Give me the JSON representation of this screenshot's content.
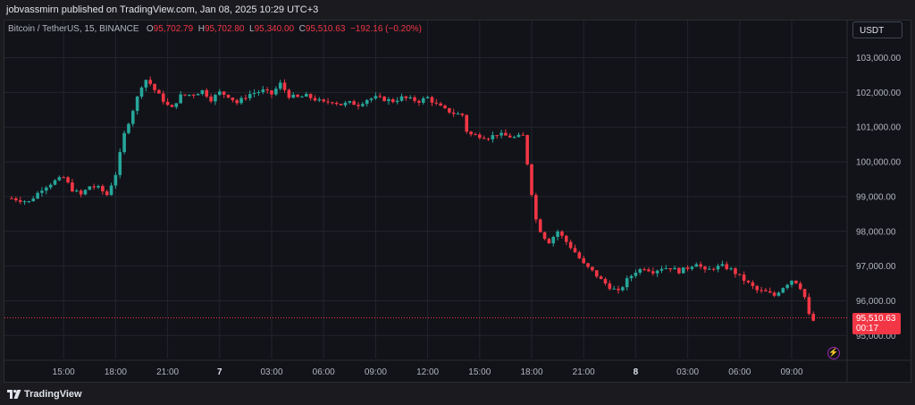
{
  "publisher": "jobvassmirn published on TradingView.com, Jan 08, 2025 10:29 UTC+3",
  "legend": {
    "symbol": "Bitcoin / TetherUS, 15, BINANCE",
    "o_label": "O",
    "o_value": "95,702.79",
    "h_label": "H",
    "h_value": "95,702.80",
    "l_label": "L",
    "l_value": "95,340.00",
    "c_label": "C",
    "c_value": "95,510.63",
    "change": "−192.16 (−0.20%)"
  },
  "currency_button": "USDT",
  "price_tag": {
    "price": "95,510.63",
    "countdown": "00:17"
  },
  "footer": {
    "brand": "TradingView",
    "logo_icon": "tradingview-logo-icon"
  },
  "bolt_icon": "lightning-icon",
  "colors": {
    "up": "#26a69a",
    "down": "#f23645",
    "grid": "#22252d",
    "text": "#b2b5be"
  },
  "chart_data": {
    "type": "candlestick",
    "ylim": [
      94700,
      103400
    ],
    "y_ticks": [
      {
        "value": 95000,
        "label": "95,000.00"
      },
      {
        "value": 96000,
        "label": "96,000.00"
      },
      {
        "value": 97000,
        "label": "97,000.00"
      },
      {
        "value": 98000,
        "label": "98,000.00"
      },
      {
        "value": 99000,
        "label": "99,000.00"
      },
      {
        "value": 100000,
        "label": "100,000.00"
      },
      {
        "value": 101000,
        "label": "101,000.00"
      },
      {
        "value": 102000,
        "label": "102,000.00"
      },
      {
        "value": 103000,
        "label": "103,000.00"
      }
    ],
    "x_start": "Jan 06 12:00",
    "x_end": "Jan 08 10:30",
    "x_ticks": [
      {
        "t": 3,
        "label": "15:00",
        "bold": false
      },
      {
        "t": 6,
        "label": "18:00",
        "bold": false
      },
      {
        "t": 9,
        "label": "21:00",
        "bold": false
      },
      {
        "t": 12,
        "label": "7",
        "bold": true
      },
      {
        "t": 15,
        "label": "03:00",
        "bold": false
      },
      {
        "t": 18,
        "label": "06:00",
        "bold": false
      },
      {
        "t": 21,
        "label": "09:00",
        "bold": false
      },
      {
        "t": 24,
        "label": "12:00",
        "bold": false
      },
      {
        "t": 27,
        "label": "15:00",
        "bold": false
      },
      {
        "t": 30,
        "label": "18:00",
        "bold": false
      },
      {
        "t": 33,
        "label": "21:00",
        "bold": false
      },
      {
        "t": 36,
        "label": "8",
        "bold": true
      },
      {
        "t": 39,
        "label": "03:00",
        "bold": false
      },
      {
        "t": 42,
        "label": "06:00",
        "bold": false
      },
      {
        "t": 45,
        "label": "09:00",
        "bold": false
      }
    ],
    "last_price": 95510.63,
    "close_path": [
      [
        0,
        98950
      ],
      [
        1.0,
        98850
      ],
      [
        1.8,
        99250
      ],
      [
        2.5,
        99450
      ],
      [
        3.0,
        99550
      ],
      [
        3.5,
        99200
      ],
      [
        4.0,
        99050
      ],
      [
        4.5,
        99300
      ],
      [
        5.0,
        99250
      ],
      [
        5.5,
        99050
      ],
      [
        6.0,
        99650
      ],
      [
        6.5,
        100800
      ],
      [
        7.0,
        101500
      ],
      [
        7.5,
        102200
      ],
      [
        7.8,
        102400
      ],
      [
        8.2,
        102100
      ],
      [
        8.7,
        101800
      ],
      [
        9.2,
        101500
      ],
      [
        9.7,
        101900
      ],
      [
        10.5,
        101950
      ],
      [
        11.0,
        102050
      ],
      [
        11.5,
        101800
      ],
      [
        12.0,
        102000
      ],
      [
        12.5,
        101900
      ],
      [
        13.0,
        101700
      ],
      [
        13.7,
        101950
      ],
      [
        14.5,
        102050
      ],
      [
        15.0,
        101950
      ],
      [
        15.5,
        102250
      ],
      [
        16.0,
        101900
      ],
      [
        16.5,
        101850
      ],
      [
        17.0,
        101900
      ],
      [
        17.5,
        101800
      ],
      [
        18.0,
        101700
      ],
      [
        18.5,
        101750
      ],
      [
        19.0,
        101650
      ],
      [
        19.5,
        101700
      ],
      [
        20.0,
        101650
      ],
      [
        20.5,
        101800
      ],
      [
        21.0,
        101850
      ],
      [
        21.5,
        101800
      ],
      [
        22.0,
        101750
      ],
      [
        22.5,
        101850
      ],
      [
        23.0,
        101800
      ],
      [
        23.5,
        101750
      ],
      [
        24.0,
        101850
      ],
      [
        24.5,
        101650
      ],
      [
        25.0,
        101500
      ],
      [
        25.5,
        101400
      ],
      [
        26.0,
        101350
      ],
      [
        26.3,
        100800
      ],
      [
        27.0,
        100750
      ],
      [
        27.5,
        100700
      ],
      [
        28.0,
        100800
      ],
      [
        28.5,
        100750
      ],
      [
        29.0,
        100700
      ],
      [
        29.5,
        100750
      ],
      [
        29.8,
        99800
      ],
      [
        30.2,
        98400
      ],
      [
        30.6,
        97900
      ],
      [
        31.0,
        97700
      ],
      [
        31.5,
        98000
      ],
      [
        32.0,
        97700
      ],
      [
        32.5,
        97400
      ],
      [
        33.0,
        97050
      ],
      [
        33.5,
        96850
      ],
      [
        34.0,
        96600
      ],
      [
        34.5,
        96400
      ],
      [
        35.0,
        96250
      ],
      [
        35.5,
        96600
      ],
      [
        36.0,
        96850
      ],
      [
        36.5,
        96950
      ],
      [
        37.0,
        96850
      ],
      [
        37.5,
        96950
      ],
      [
        38.0,
        96950
      ],
      [
        38.5,
        96850
      ],
      [
        39.0,
        96950
      ],
      [
        39.5,
        97100
      ],
      [
        40.0,
        96850
      ],
      [
        40.5,
        96950
      ],
      [
        41.0,
        97000
      ],
      [
        41.5,
        96900
      ],
      [
        42.0,
        96700
      ],
      [
        42.5,
        96500
      ],
      [
        43.0,
        96300
      ],
      [
        43.5,
        96250
      ],
      [
        44.0,
        96150
      ],
      [
        44.5,
        96400
      ],
      [
        45.0,
        96600
      ],
      [
        45.4,
        96500
      ],
      [
        45.8,
        96050
      ],
      [
        46.1,
        95350
      ],
      [
        46.4,
        95500
      ]
    ]
  }
}
